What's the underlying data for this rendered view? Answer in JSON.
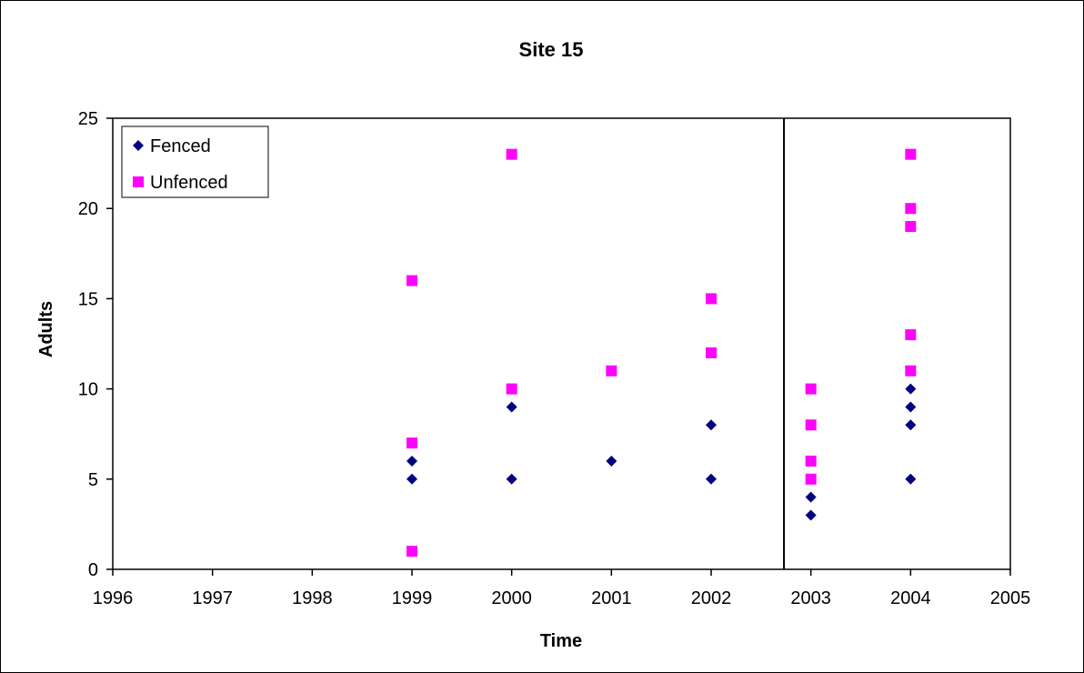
{
  "chart_data": {
    "type": "scatter",
    "title": "Site 15",
    "xlabel": "Time",
    "ylabel": "Adults",
    "xlim": [
      1996,
      2005
    ],
    "ylim": [
      0,
      25
    ],
    "x_ticks": [
      "1996",
      "1997",
      "1998",
      "1999",
      "2000",
      "2001",
      "2002",
      "2003",
      "2004",
      "2005"
    ],
    "y_ticks": [
      "0",
      "5",
      "10",
      "15",
      "20",
      "25"
    ],
    "grid": false,
    "legend_position": "top-left",
    "reference_line_x": 2002.73,
    "series": [
      {
        "name": "Fenced",
        "marker": "diamond",
        "color": "#000080",
        "points": [
          [
            1999,
            5
          ],
          [
            1999,
            6
          ],
          [
            2000,
            5
          ],
          [
            2000,
            9
          ],
          [
            2001,
            6
          ],
          [
            2002,
            5
          ],
          [
            2002,
            8
          ],
          [
            2003,
            3
          ],
          [
            2003,
            4
          ],
          [
            2004,
            5
          ],
          [
            2004,
            8
          ],
          [
            2004,
            9
          ],
          [
            2004,
            10
          ]
        ]
      },
      {
        "name": "Unfenced",
        "marker": "square",
        "color": "#FF00FF",
        "points": [
          [
            1999,
            1
          ],
          [
            1999,
            7
          ],
          [
            1999,
            16
          ],
          [
            2000,
            10
          ],
          [
            2000,
            23
          ],
          [
            2001,
            11
          ],
          [
            2002,
            12
          ],
          [
            2002,
            15
          ],
          [
            2003,
            5
          ],
          [
            2003,
            6
          ],
          [
            2003,
            8
          ],
          [
            2003,
            10
          ],
          [
            2004,
            11
          ],
          [
            2004,
            13
          ],
          [
            2004,
            19
          ],
          [
            2004,
            20
          ],
          [
            2004,
            23
          ]
        ]
      }
    ]
  }
}
